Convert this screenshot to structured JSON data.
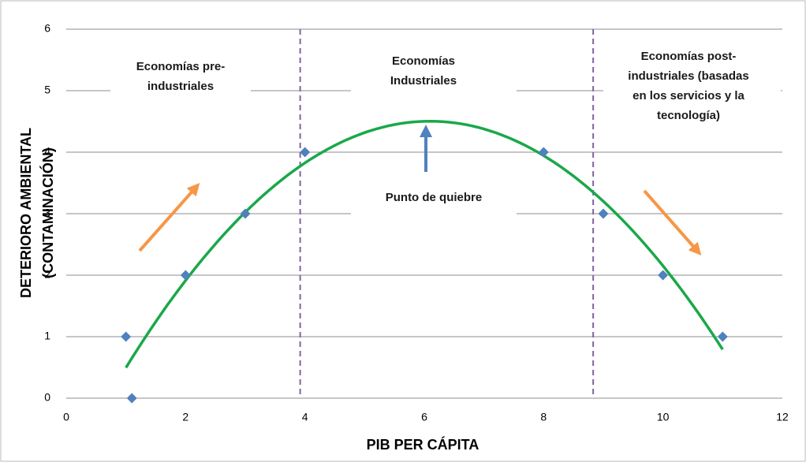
{
  "chart_data": {
    "type": "scatter",
    "x_label": "PIB PER CÁPITA",
    "y_label_lines": [
      "DETERIORO AMBIENTAL",
      "(CONTAMINACIÓN)"
    ],
    "x": [
      1,
      1.1,
      2,
      3,
      4,
      8,
      9,
      10,
      11
    ],
    "values": [
      1,
      0,
      2,
      3,
      4,
      4,
      3,
      2,
      1
    ],
    "color": "#4f81bd",
    "trendline": {
      "order": 2,
      "color": "#1aa84a"
    },
    "reference_lines": {
      "x": [
        3.92,
        8.83
      ],
      "color": "#8064a2"
    },
    "xlim": [
      0,
      12
    ],
    "xticks": [
      0,
      2,
      4,
      6,
      8,
      10,
      12
    ],
    "ylim": [
      0,
      6
    ],
    "yticks": [
      0,
      1,
      2,
      3,
      4,
      5,
      6
    ],
    "grid": true,
    "annotations": [
      {
        "lines": [
          "Economías pre-",
          "industriales"
        ]
      },
      {
        "lines": [
          "Economías",
          "Industriales"
        ]
      },
      {
        "lines": [
          "Economías post-",
          "industriales (basadas",
          "en los servicios y la",
          "tecnología)"
        ]
      },
      {
        "lines": [
          "Punto de quiebre"
        ]
      }
    ]
  }
}
